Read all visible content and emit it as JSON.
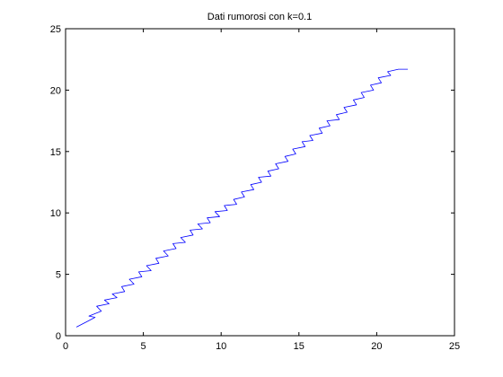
{
  "chart_data": {
    "type": "line",
    "title": "Dati rumorosi con k=0.1",
    "xlabel": "",
    "ylabel": "",
    "xlim": [
      0,
      25
    ],
    "ylim": [
      0,
      25
    ],
    "xticks": [
      0,
      5,
      10,
      15,
      20,
      25
    ],
    "yticks": [
      0,
      5,
      10,
      15,
      20,
      25
    ],
    "grid": false,
    "series": [
      {
        "color": "#0000ff",
        "points": [
          [
            0.7,
            0.7
          ],
          [
            1.3,
            1.1
          ],
          [
            1.9,
            1.5
          ],
          [
            1.5,
            1.6
          ],
          [
            2.3,
            2.0
          ],
          [
            2.0,
            2.4
          ],
          [
            2.8,
            2.6
          ],
          [
            2.5,
            2.9
          ],
          [
            3.3,
            3.1
          ],
          [
            3.0,
            3.4
          ],
          [
            3.8,
            3.6
          ],
          [
            3.6,
            4.0
          ],
          [
            4.4,
            4.2
          ],
          [
            4.1,
            4.6
          ],
          [
            4.9,
            4.8
          ],
          [
            4.7,
            5.2
          ],
          [
            5.5,
            5.3
          ],
          [
            5.2,
            5.7
          ],
          [
            6.0,
            5.9
          ],
          [
            5.8,
            6.3
          ],
          [
            6.6,
            6.5
          ],
          [
            6.3,
            6.9
          ],
          [
            7.1,
            7.1
          ],
          [
            6.9,
            7.5
          ],
          [
            7.7,
            7.6
          ],
          [
            7.4,
            8.0
          ],
          [
            8.2,
            8.2
          ],
          [
            8.0,
            8.6
          ],
          [
            8.8,
            8.7
          ],
          [
            8.5,
            9.1
          ],
          [
            9.3,
            9.2
          ],
          [
            9.1,
            9.6
          ],
          [
            9.9,
            9.7
          ],
          [
            9.6,
            10.1
          ],
          [
            10.4,
            10.2
          ],
          [
            10.2,
            10.6
          ],
          [
            11.0,
            10.7
          ],
          [
            10.8,
            11.1
          ],
          [
            11.5,
            11.3
          ],
          [
            11.3,
            11.7
          ],
          [
            12.1,
            11.9
          ],
          [
            11.9,
            12.3
          ],
          [
            12.6,
            12.5
          ],
          [
            12.4,
            12.9
          ],
          [
            13.2,
            13.0
          ],
          [
            13.0,
            13.4
          ],
          [
            13.7,
            13.6
          ],
          [
            13.5,
            14.0
          ],
          [
            14.3,
            14.2
          ],
          [
            14.1,
            14.6
          ],
          [
            14.8,
            14.8
          ],
          [
            14.6,
            15.2
          ],
          [
            15.4,
            15.4
          ],
          [
            15.2,
            15.8
          ],
          [
            15.9,
            15.9
          ],
          [
            15.7,
            16.3
          ],
          [
            16.5,
            16.5
          ],
          [
            16.3,
            16.9
          ],
          [
            17.0,
            17.1
          ],
          [
            16.8,
            17.5
          ],
          [
            17.6,
            17.6
          ],
          [
            17.4,
            18.0
          ],
          [
            18.1,
            18.2
          ],
          [
            17.9,
            18.6
          ],
          [
            18.7,
            18.8
          ],
          [
            18.5,
            19.2
          ],
          [
            19.2,
            19.4
          ],
          [
            19.0,
            19.8
          ],
          [
            19.8,
            20.0
          ],
          [
            19.6,
            20.4
          ],
          [
            20.3,
            20.6
          ],
          [
            20.1,
            21.0
          ],
          [
            20.9,
            21.2
          ],
          [
            20.7,
            21.5
          ],
          [
            21.4,
            21.7
          ],
          [
            22.0,
            21.7
          ]
        ]
      }
    ]
  }
}
